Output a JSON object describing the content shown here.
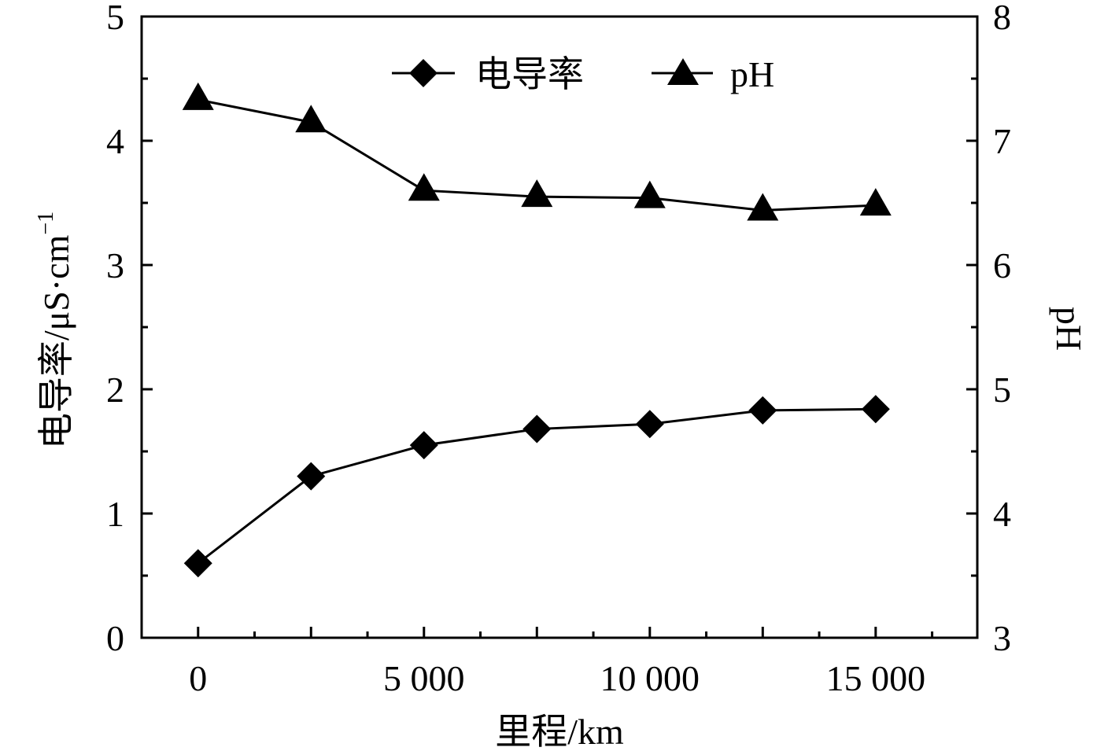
{
  "chart_data": {
    "type": "line",
    "x": [
      0,
      2500,
      5000,
      7500,
      10000,
      12500,
      15000
    ],
    "xlim": [
      -1250,
      17250
    ],
    "xticks": [
      0,
      5000,
      10000,
      15000
    ],
    "xtick_labels": [
      "0",
      "5 000",
      "10 000",
      "15 000"
    ],
    "xlabel": "里程/km",
    "ylabel_left": "电导率/μS·cm",
    "ylabel_left_sup": "−1",
    "ylabel_right": "pH",
    "ylim_left": [
      0,
      5
    ],
    "ylim_right": [
      3,
      8
    ],
    "yticks_left": [
      "0",
      "1",
      "2",
      "3",
      "4",
      "5"
    ],
    "yticks_right": [
      "3",
      "4",
      "5",
      "6",
      "7",
      "8"
    ],
    "legend_position": "top-center",
    "series": [
      {
        "name": "电导率",
        "axis": "left",
        "marker": "diamond",
        "color": "#000000",
        "values": [
          0.6,
          1.3,
          1.55,
          1.68,
          1.72,
          1.83,
          1.84
        ]
      },
      {
        "name": "pH",
        "axis": "right",
        "marker": "triangle",
        "color": "#000000",
        "values": [
          7.33,
          7.15,
          6.6,
          6.55,
          6.54,
          6.44,
          6.48
        ]
      }
    ]
  }
}
